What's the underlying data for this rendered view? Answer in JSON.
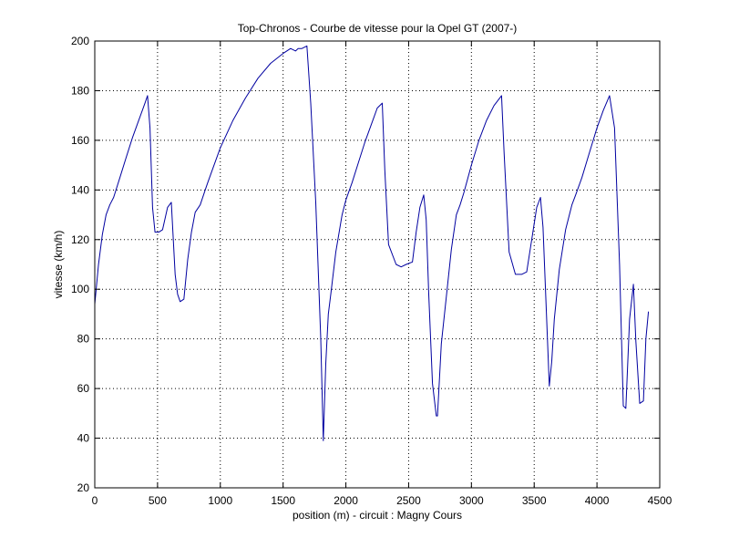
{
  "chart_data": {
    "type": "line",
    "title": "Top-Chronos - Courbe de vitesse pour la Opel GT (2007-)",
    "xlabel": "position (m) - circuit : Magny Cours",
    "ylabel": "vitesse (km/h)",
    "xlim": [
      0,
      4500
    ],
    "ylim": [
      20,
      200
    ],
    "xticks": [
      0,
      500,
      1000,
      1500,
      2000,
      2500,
      3000,
      3500,
      4000,
      4500
    ],
    "yticks": [
      20,
      40,
      60,
      80,
      100,
      120,
      140,
      160,
      180,
      200
    ],
    "grid": true,
    "line_color": "#0000a0",
    "series": [
      {
        "x": [
          0,
          30,
          60,
          90,
          120,
          150,
          200,
          250,
          300,
          350,
          400,
          420,
          440,
          460,
          480,
          510,
          540,
          580,
          610,
          640,
          660,
          680,
          710,
          740,
          770,
          800,
          840,
          880,
          900,
          950,
          1000,
          1100,
          1200,
          1300,
          1400,
          1500,
          1560,
          1600,
          1620,
          1650,
          1690,
          1720,
          1760,
          1800,
          1820,
          1840,
          1860,
          1880,
          1920,
          1970,
          2000,
          2050,
          2100,
          2150,
          2200,
          2250,
          2290,
          2310,
          2340,
          2400,
          2440,
          2480,
          2530,
          2560,
          2590,
          2620,
          2640,
          2660,
          2690,
          2720,
          2730,
          2760,
          2800,
          2840,
          2880,
          2910,
          2940,
          3000,
          3060,
          3120,
          3180,
          3240,
          3260,
          3300,
          3350,
          3400,
          3440,
          3480,
          3520,
          3550,
          3570,
          3590,
          3620,
          3640,
          3660,
          3700,
          3750,
          3800,
          3830,
          3880,
          3940,
          4000,
          4050,
          4100,
          4140,
          4180,
          4210,
          4230,
          4260,
          4290,
          4310,
          4340,
          4370,
          4390,
          4410
        ],
        "y": [
          94,
          110,
          122,
          130,
          134,
          137,
          145,
          153,
          161,
          168,
          175,
          178,
          165,
          133,
          123,
          123,
          124,
          133,
          135,
          106,
          98,
          95,
          96,
          112,
          123,
          131,
          134,
          140,
          143,
          150,
          157,
          168,
          177,
          185,
          191,
          195,
          197,
          196,
          197,
          197,
          198,
          175,
          135,
          80,
          39,
          70,
          90,
          98,
          115,
          130,
          136,
          143,
          151,
          159,
          166,
          173,
          175,
          148,
          118,
          110,
          109,
          110,
          111,
          123,
          133,
          138,
          128,
          98,
          62,
          49,
          49,
          78,
          97,
          116,
          130,
          134,
          139,
          150,
          160,
          168,
          174,
          178,
          155,
          115,
          106,
          106,
          107,
          120,
          133,
          137,
          125,
          100,
          61,
          71,
          88,
          108,
          124,
          134,
          138,
          145,
          155,
          165,
          172,
          178,
          165,
          110,
          53,
          52,
          88,
          102,
          79,
          54,
          55,
          80,
          91
        ]
      }
    ]
  }
}
